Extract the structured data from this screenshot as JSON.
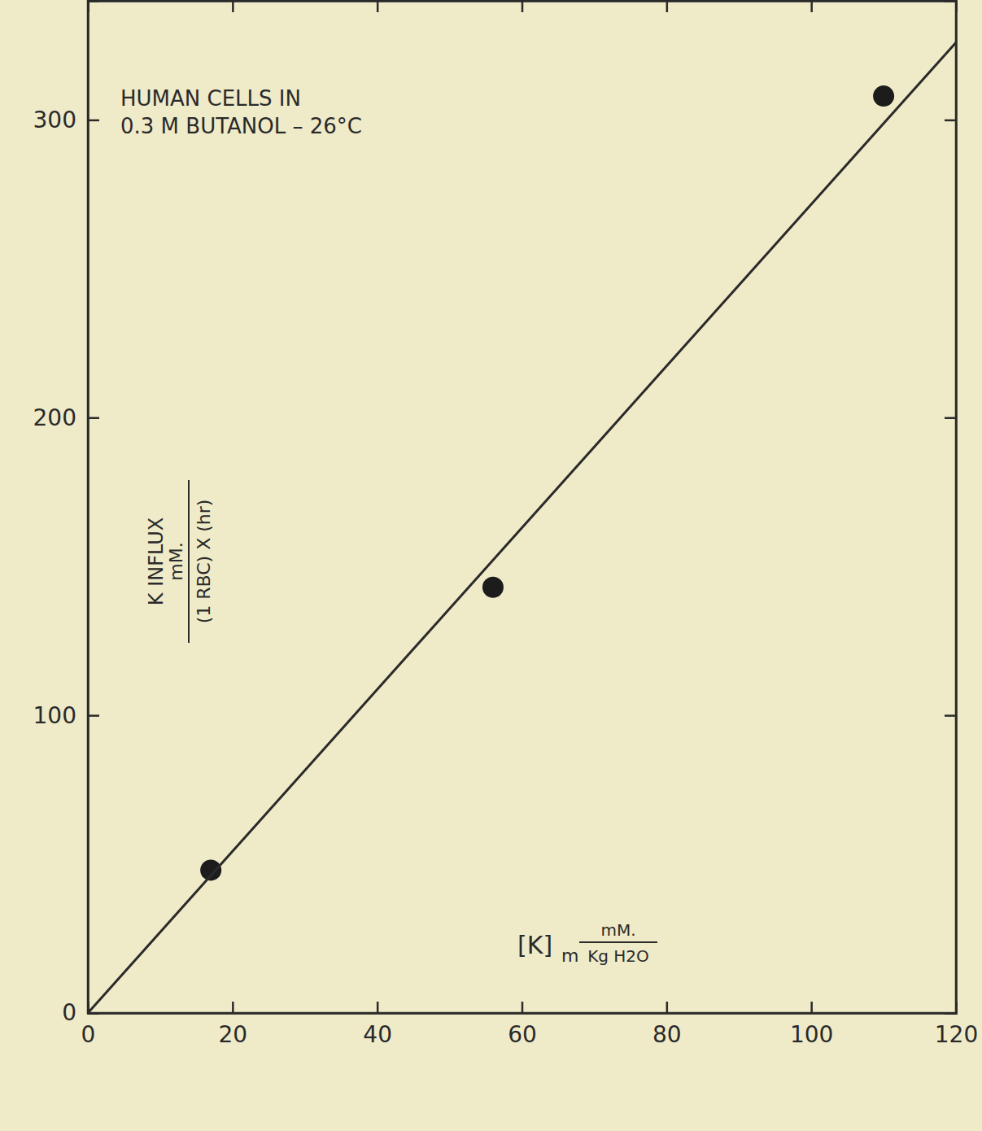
{
  "chart_data": {
    "type": "scatter",
    "annotations": [
      "HUMAN CELLS IN",
      "0.3 M BUTANOL – 26°C"
    ],
    "ylabel": [
      "K INFLUX",
      "mM.",
      "(1 RBC) X (hr)"
    ],
    "xlabel": [
      "[K]",
      "m",
      "mM.",
      "Kg H2O"
    ],
    "xlim": [
      0,
      120
    ],
    "xticks": [
      0,
      20,
      40,
      60,
      80,
      100,
      120
    ],
    "ylim": [
      0,
      340
    ],
    "yticks": [
      0,
      100,
      200,
      300
    ],
    "grid": false,
    "series": [
      {
        "type": "scatter",
        "marker": "circle",
        "color": "#1c1c1c",
        "x": [
          17,
          56,
          110
        ],
        "values": [
          48,
          143,
          308
        ]
      },
      {
        "type": "line",
        "line_style": "solid",
        "color": "#2a2a2a",
        "x": [
          0,
          120
        ],
        "values": [
          0,
          326
        ]
      }
    ]
  }
}
